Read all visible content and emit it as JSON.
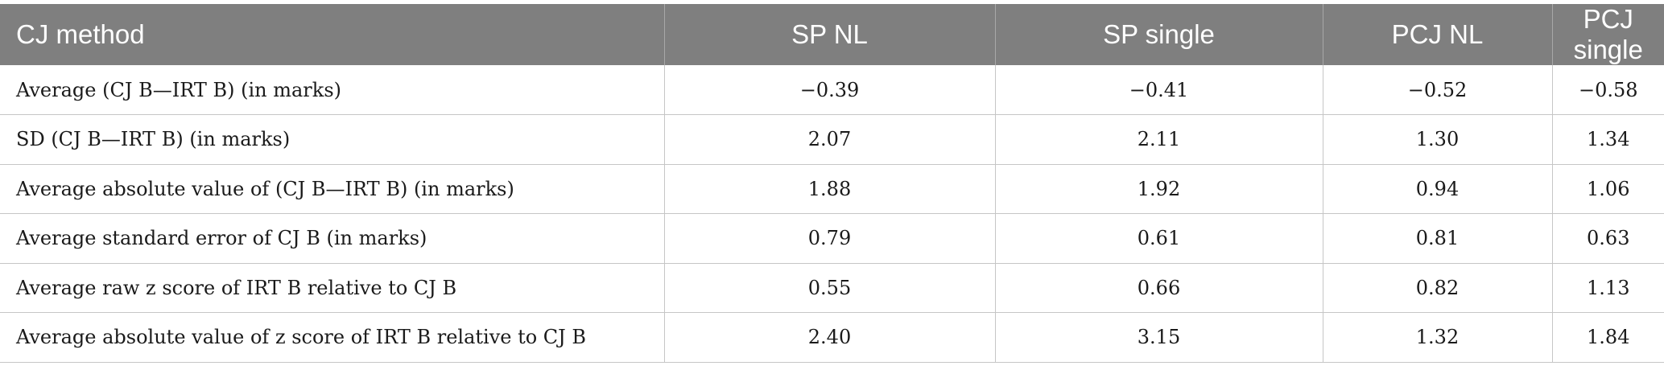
{
  "table": {
    "headers": [
      "CJ method",
      "SP NL",
      "SP single",
      "PCJ NL",
      "PCJ single"
    ],
    "rows": [
      [
        "Average (CJ B—IRT B) (in marks)",
        "−0.39",
        "−0.41",
        "−0.52",
        "−0.58"
      ],
      [
        "SD (CJ B—IRT B) (in marks)",
        "2.07",
        "2.11",
        "1.30",
        "1.34"
      ],
      [
        "Average absolute value of (CJ B—IRT B) (in marks)",
        "1.88",
        "1.92",
        "0.94",
        "1.06"
      ],
      [
        "Average standard error of CJ B (in marks)",
        "0.79",
        "0.61",
        "0.81",
        "0.63"
      ],
      [
        "Average raw z score of IRT B relative to CJ B",
        "0.55",
        "0.66",
        "0.82",
        "1.13"
      ],
      [
        "Average absolute value of z score of IRT B relative to CJ B",
        "2.40",
        "3.15",
        "1.32",
        "1.84"
      ]
    ]
  }
}
